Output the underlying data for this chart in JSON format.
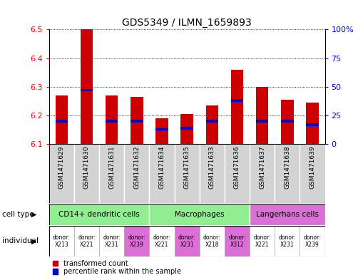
{
  "title": "GDS5349 / ILMN_1659893",
  "samples": [
    "GSM1471629",
    "GSM1471630",
    "GSM1471631",
    "GSM1471632",
    "GSM1471634",
    "GSM1471635",
    "GSM1471633",
    "GSM1471636",
    "GSM1471637",
    "GSM1471638",
    "GSM1471639"
  ],
  "transformed_counts": [
    6.27,
    6.5,
    6.27,
    6.265,
    6.19,
    6.205,
    6.235,
    6.36,
    6.3,
    6.255,
    6.245
  ],
  "percentile_ranks": [
    20,
    47,
    20,
    20,
    13,
    14,
    20,
    38,
    20,
    20,
    17
  ],
  "y_min": 6.1,
  "y_max": 6.5,
  "y_ticks": [
    6.1,
    6.2,
    6.3,
    6.4,
    6.5
  ],
  "y2_ticks": [
    0,
    25,
    50,
    75,
    100
  ],
  "cell_types": [
    {
      "label": "CD14+ dendritic cells",
      "start": 0,
      "end": 4,
      "color": "#90EE90"
    },
    {
      "label": "Macrophages",
      "start": 4,
      "end": 8,
      "color": "#90EE90"
    },
    {
      "label": "Langerhans cells",
      "start": 8,
      "end": 11,
      "color": "#DA70D6"
    }
  ],
  "individuals": [
    {
      "label": "donor:\nX213",
      "color": "#ffffff",
      "idx": 0
    },
    {
      "label": "donor:\nX221",
      "color": "#ffffff",
      "idx": 1
    },
    {
      "label": "donor:\nX231",
      "color": "#ffffff",
      "idx": 2
    },
    {
      "label": "donor:\nX239",
      "color": "#DA70D6",
      "idx": 3
    },
    {
      "label": "donor:\nX221",
      "color": "#ffffff",
      "idx": 4
    },
    {
      "label": "donor:\nX231",
      "color": "#DA70D6",
      "idx": 5
    },
    {
      "label": "donor:\nX218",
      "color": "#ffffff",
      "idx": 6
    },
    {
      "label": "donor:\nX312",
      "color": "#DA70D6",
      "idx": 7
    },
    {
      "label": "donor:\nX221",
      "color": "#ffffff",
      "idx": 8
    },
    {
      "label": "donor:\nX231",
      "color": "#ffffff",
      "idx": 9
    },
    {
      "label": "donor:\nX239",
      "color": "#ffffff",
      "idx": 10
    }
  ],
  "bar_color": "#CC0000",
  "blue_color": "#0000CC",
  "bar_width": 0.5,
  "label_fontsize": 6,
  "sample_bg_color": "#d3d3d3",
  "legend_square_size": 6
}
